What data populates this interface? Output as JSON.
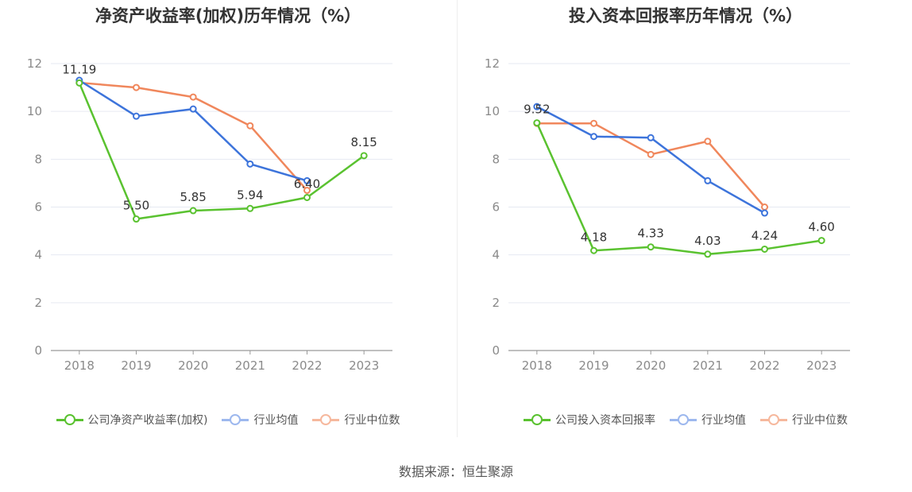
{
  "source": "数据来源：恒生聚源",
  "chart_data": [
    {
      "type": "line",
      "title": "净资产收益率(加权)历年情况（%）",
      "categories": [
        "2018",
        "2019",
        "2020",
        "2021",
        "2022",
        "2023"
      ],
      "ylim": [
        0,
        12
      ],
      "yticks": [
        "0",
        "2",
        "4",
        "6",
        "8",
        "10",
        "12"
      ],
      "grid": true,
      "legend_position": "bottom",
      "series": [
        {
          "name": "公司净资产收益率(加权)",
          "color": "#5ac230",
          "values": [
            11.19,
            5.5,
            5.85,
            5.94,
            6.4,
            8.15
          ],
          "labels": [
            "11.19",
            "5.50",
            "5.85",
            "5.94",
            "6.40",
            "8.15"
          ]
        },
        {
          "name": "行业均值",
          "color": "#3d74db",
          "values": [
            11.3,
            9.8,
            10.1,
            7.8,
            7.1,
            null
          ]
        },
        {
          "name": "行业中位数",
          "color": "#f0875c",
          "values": [
            11.2,
            11.0,
            10.6,
            9.4,
            6.7,
            null
          ]
        }
      ]
    },
    {
      "type": "line",
      "title": "投入资本回报率历年情况（%）",
      "categories": [
        "2018",
        "2019",
        "2020",
        "2021",
        "2022",
        "2023"
      ],
      "ylim": [
        0,
        12
      ],
      "yticks": [
        "0",
        "2",
        "4",
        "6",
        "8",
        "10",
        "12"
      ],
      "grid": true,
      "legend_position": "bottom",
      "series": [
        {
          "name": "公司投入资本回报率",
          "color": "#5ac230",
          "values": [
            9.52,
            4.18,
            4.33,
            4.03,
            4.24,
            4.6
          ],
          "labels": [
            "9.52",
            "4.18",
            "4.33",
            "4.03",
            "4.24",
            "4.60"
          ]
        },
        {
          "name": "行业均值",
          "color": "#3d74db",
          "values": [
            10.2,
            8.95,
            8.9,
            7.1,
            5.75,
            null
          ]
        },
        {
          "name": "行业中位数",
          "color": "#f0875c",
          "values": [
            9.5,
            9.5,
            8.2,
            8.75,
            6.0,
            null
          ]
        }
      ]
    }
  ]
}
